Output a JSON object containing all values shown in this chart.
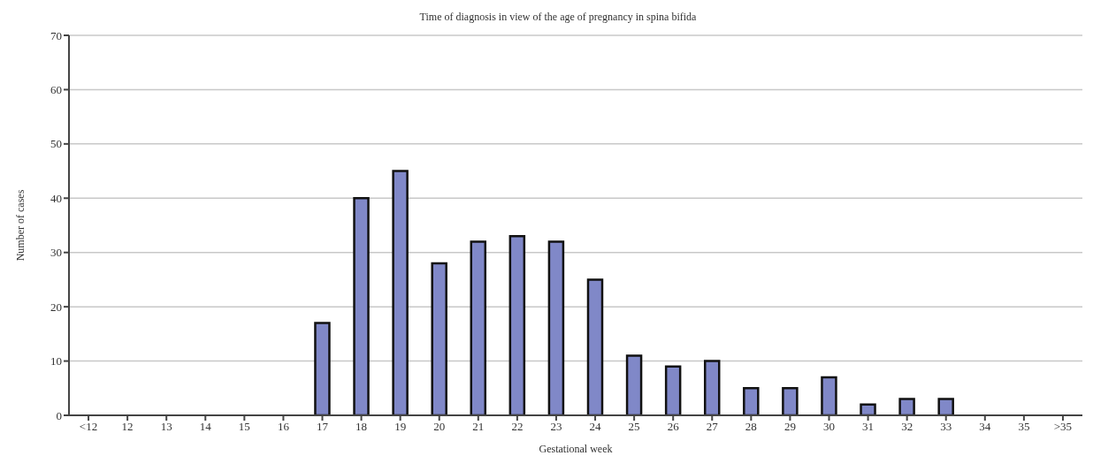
{
  "chart_data": {
    "type": "bar",
    "title": "Time of diagnosis in view of the age of pregnancy in spina bifida",
    "xlabel": "Gestational week",
    "ylabel": "Number of cases",
    "categories": [
      "<12",
      "12",
      "13",
      "14",
      "15",
      "16",
      "17",
      "18",
      "19",
      "20",
      "21",
      "22",
      "23",
      "24",
      "25",
      "26",
      "27",
      "28",
      "29",
      "30",
      "31",
      "32",
      "33",
      "34",
      "35",
      ">35"
    ],
    "values": [
      0,
      0,
      0,
      0,
      0,
      0,
      17,
      40,
      45,
      28,
      32,
      33,
      32,
      25,
      11,
      9,
      10,
      5,
      5,
      7,
      2,
      3,
      3,
      0,
      0,
      0
    ],
    "color": "#8088c8",
    "ylim": [
      0,
      70
    ],
    "yticks": [
      0,
      10,
      20,
      30,
      40,
      50,
      60,
      70
    ],
    "grid": "y"
  }
}
